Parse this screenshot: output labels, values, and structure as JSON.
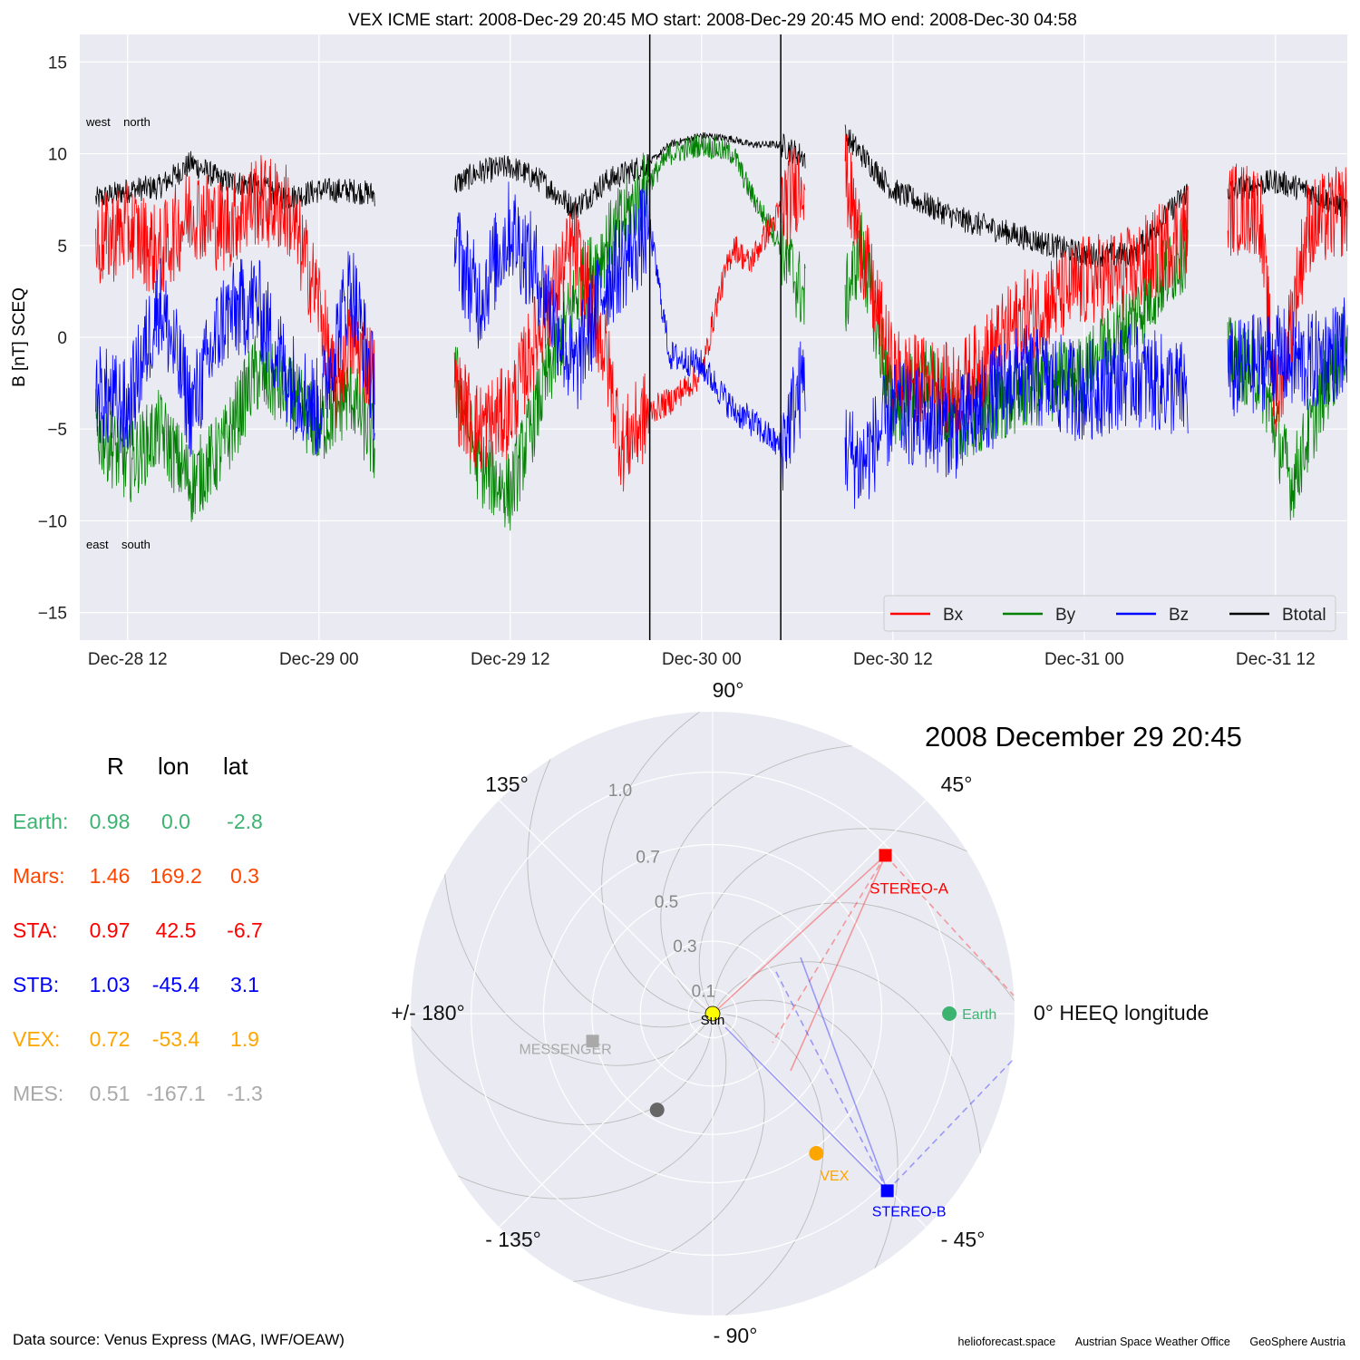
{
  "chart_data": [
    {
      "type": "line",
      "title": "VEX    ICME start: 2008-Dec-29 20:45   MO start: 2008-Dec-29 20:45   MO end: 2008-Dec-30 04:58",
      "ylabel": "B [nT] SCEQ",
      "xlabel": "",
      "x_range": [
        "2008-12-28 09:00",
        "2008-12-31 16:30"
      ],
      "ylim": [
        -16.5,
        16.5
      ],
      "yticks": [
        -15,
        -10,
        -5,
        0,
        5,
        10,
        15
      ],
      "xticks": [
        {
          "t": "2008-12-28 12:00",
          "label": "Dec-28 12"
        },
        {
          "t": "2008-12-29 00:00",
          "label": "Dec-29 00"
        },
        {
          "t": "2008-12-29 12:00",
          "label": "Dec-29 12"
        },
        {
          "t": "2008-12-30 00:00",
          "label": "Dec-30 00"
        },
        {
          "t": "2008-12-30 12:00",
          "label": "Dec-30 12"
        },
        {
          "t": "2008-12-31 00:00",
          "label": "Dec-31 00"
        },
        {
          "t": "2008-12-31 12:00",
          "label": "Dec-31 12"
        }
      ],
      "grid": true,
      "legend_position": "lower-right",
      "annotations": {
        "top_left": "west    north",
        "bottom_left": "east    south"
      },
      "vlines": [
        "2008-12-29 20:45",
        "2008-12-30 04:58"
      ],
      "data_gaps": [
        [
          "2008-12-29 03:30",
          "2008-12-29 08:30"
        ],
        [
          "2008-12-30 06:30",
          "2008-12-30 09:00"
        ],
        [
          "2008-12-31 06:30",
          "2008-12-31 09:00"
        ]
      ],
      "series": [
        {
          "name": "Bx",
          "color": "#ff0000",
          "points": [
            [
              "2008-12-28 10:00",
              5
            ],
            [
              "2008-12-28 12:00",
              6
            ],
            [
              "2008-12-28 14:00",
              4.5
            ],
            [
              "2008-12-28 16:00",
              7
            ],
            [
              "2008-12-28 18:00",
              6
            ],
            [
              "2008-12-28 20:00",
              7.5
            ],
            [
              "2008-12-28 22:00",
              7
            ],
            [
              "2008-12-29 00:00",
              2
            ],
            [
              "2008-12-29 01:00",
              -3
            ],
            [
              "2008-12-29 02:00",
              0
            ],
            [
              "2008-12-29 03:30",
              -2
            ],
            [
              "2008-12-29 08:30",
              -3
            ],
            [
              "2008-12-29 10:00",
              -5
            ],
            [
              "2008-12-29 12:00",
              -4
            ],
            [
              "2008-12-29 14:00",
              1
            ],
            [
              "2008-12-29 16:00",
              5
            ],
            [
              "2008-12-29 18:00",
              -1
            ],
            [
              "2008-12-29 19:00",
              -6
            ],
            [
              "2008-12-29 20:45",
              -4
            ],
            [
              "2008-12-29 22:00",
              -3.5
            ],
            [
              "2008-12-30 00:00",
              -2
            ],
            [
              "2008-12-30 01:00",
              2
            ],
            [
              "2008-12-30 02:00",
              5
            ],
            [
              "2008-12-30 03:00",
              4
            ],
            [
              "2008-12-30 04:58",
              7
            ],
            [
              "2008-12-30 06:30",
              9
            ],
            [
              "2008-12-30 09:00",
              9
            ],
            [
              "2008-12-30 10:00",
              5
            ],
            [
              "2008-12-30 12:00",
              -2
            ],
            [
              "2008-12-30 16:00",
              -3
            ],
            [
              "2008-12-30 20:00",
              1
            ],
            [
              "2008-12-31 00:00",
              3
            ],
            [
              "2008-12-31 03:00",
              3.5
            ],
            [
              "2008-12-31 06:30",
              6
            ],
            [
              "2008-12-31 09:00",
              7
            ],
            [
              "2008-12-31 11:00",
              7
            ],
            [
              "2008-12-31 12:00",
              -4
            ],
            [
              "2008-12-31 14:00",
              6
            ],
            [
              "2008-12-31 16:30",
              7
            ]
          ]
        },
        {
          "name": "By",
          "color": "#008000",
          "points": [
            [
              "2008-12-28 10:00",
              -5
            ],
            [
              "2008-12-28 12:00",
              -7
            ],
            [
              "2008-12-28 14:00",
              -5
            ],
            [
              "2008-12-28 16:00",
              -8
            ],
            [
              "2008-12-28 18:00",
              -6
            ],
            [
              "2008-12-28 20:00",
              -2
            ],
            [
              "2008-12-28 22:00",
              -3
            ],
            [
              "2008-12-29 00:00",
              -5
            ],
            [
              "2008-12-29 02:00",
              -3
            ],
            [
              "2008-12-29 03:30",
              -6
            ],
            [
              "2008-12-29 08:30",
              -2
            ],
            [
              "2008-12-29 10:00",
              -7
            ],
            [
              "2008-12-29 12:00",
              -8.5
            ],
            [
              "2008-12-29 14:00",
              -3
            ],
            [
              "2008-12-29 16:00",
              2
            ],
            [
              "2008-12-29 18:00",
              5
            ],
            [
              "2008-12-29 20:45",
              8.5
            ],
            [
              "2008-12-29 22:00",
              10
            ],
            [
              "2008-12-30 00:00",
              10.5
            ],
            [
              "2008-12-30 02:00",
              10
            ],
            [
              "2008-12-30 03:00",
              8
            ],
            [
              "2008-12-30 04:58",
              5
            ],
            [
              "2008-12-30 06:30",
              2
            ],
            [
              "2008-12-30 09:00",
              2
            ],
            [
              "2008-12-30 10:00",
              5
            ],
            [
              "2008-12-30 12:00",
              -4
            ],
            [
              "2008-12-30 14:00",
              -2
            ],
            [
              "2008-12-30 16:00",
              -5
            ],
            [
              "2008-12-30 20:00",
              -3
            ],
            [
              "2008-12-31 00:00",
              -2
            ],
            [
              "2008-12-31 03:00",
              1
            ],
            [
              "2008-12-31 06:30",
              5
            ],
            [
              "2008-12-31 09:00",
              -1
            ],
            [
              "2008-12-31 11:00",
              -2
            ],
            [
              "2008-12-31 13:00",
              -8
            ],
            [
              "2008-12-31 15:00",
              -3
            ],
            [
              "2008-12-31 16:30",
              0
            ]
          ]
        },
        {
          "name": "Bz",
          "color": "#0000ff",
          "points": [
            [
              "2008-12-28 10:00",
              -3
            ],
            [
              "2008-12-28 12:00",
              -4
            ],
            [
              "2008-12-28 14:00",
              2
            ],
            [
              "2008-12-28 16:00",
              -4
            ],
            [
              "2008-12-28 18:00",
              1
            ],
            [
              "2008-12-28 20:00",
              2
            ],
            [
              "2008-12-28 22:00",
              -2
            ],
            [
              "2008-12-29 00:00",
              -4
            ],
            [
              "2008-12-29 02:00",
              3
            ],
            [
              "2008-12-29 03:30",
              -3
            ],
            [
              "2008-12-29 08:30",
              5
            ],
            [
              "2008-12-29 10:00",
              2
            ],
            [
              "2008-12-29 12:00",
              6
            ],
            [
              "2008-12-29 14:00",
              3
            ],
            [
              "2008-12-29 16:00",
              -2
            ],
            [
              "2008-12-29 18:00",
              3
            ],
            [
              "2008-12-29 20:45",
              6
            ],
            [
              "2008-12-29 22:00",
              -1
            ],
            [
              "2008-12-30 00:00",
              -1.5
            ],
            [
              "2008-12-30 02:00",
              -4
            ],
            [
              "2008-12-30 03:00",
              -4.5
            ],
            [
              "2008-12-30 04:58",
              -6
            ],
            [
              "2008-12-30 06:30",
              -2
            ],
            [
              "2008-12-30 09:00",
              -6
            ],
            [
              "2008-12-30 10:00",
              -7
            ],
            [
              "2008-12-30 12:00",
              -4
            ],
            [
              "2008-12-30 16:00",
              -5
            ],
            [
              "2008-12-30 20:00",
              -2
            ],
            [
              "2008-12-31 00:00",
              -3
            ],
            [
              "2008-12-31 03:00",
              -2
            ],
            [
              "2008-12-31 06:30",
              -3
            ],
            [
              "2008-12-31 09:00",
              -2
            ],
            [
              "2008-12-31 12:00",
              -1
            ],
            [
              "2008-12-31 14:00",
              -1.5
            ],
            [
              "2008-12-31 16:30",
              -0.5
            ]
          ]
        },
        {
          "name": "Btotal",
          "color": "#000000",
          "points": [
            [
              "2008-12-28 10:00",
              7.5
            ],
            [
              "2008-12-28 12:00",
              8
            ],
            [
              "2008-12-28 14:00",
              8.2
            ],
            [
              "2008-12-28 16:00",
              9.5
            ],
            [
              "2008-12-28 18:00",
              8.5
            ],
            [
              "2008-12-28 20:00",
              8.3
            ],
            [
              "2008-12-28 22:00",
              7.6
            ],
            [
              "2008-12-29 00:00",
              8
            ],
            [
              "2008-12-29 02:00",
              8
            ],
            [
              "2008-12-29 03:30",
              7.8
            ],
            [
              "2008-12-29 08:30",
              8.3
            ],
            [
              "2008-12-29 10:00",
              9
            ],
            [
              "2008-12-29 12:00",
              9.3
            ],
            [
              "2008-12-29 14:00",
              8.5
            ],
            [
              "2008-12-29 16:00",
              7
            ],
            [
              "2008-12-29 18:00",
              8.5
            ],
            [
              "2008-12-29 20:45",
              9.5
            ],
            [
              "2008-12-29 22:00",
              10.5
            ],
            [
              "2008-12-30 00:00",
              11
            ],
            [
              "2008-12-30 02:00",
              10.8
            ],
            [
              "2008-12-30 03:00",
              10.5
            ],
            [
              "2008-12-30 04:58",
              10.5
            ],
            [
              "2008-12-30 06:30",
              9.8
            ],
            [
              "2008-12-30 09:00",
              11
            ],
            [
              "2008-12-30 10:00",
              10
            ],
            [
              "2008-12-30 12:00",
              8
            ],
            [
              "2008-12-30 16:00",
              6.5
            ],
            [
              "2008-12-30 20:00",
              5.5
            ],
            [
              "2008-12-31 00:00",
              4.5
            ],
            [
              "2008-12-31 03:00",
              4.5
            ],
            [
              "2008-12-31 06:30",
              8
            ],
            [
              "2008-12-31 09:00",
              8
            ],
            [
              "2008-12-31 12:00",
              8.5
            ],
            [
              "2008-12-31 14:00",
              8
            ],
            [
              "2008-12-31 16:30",
              7
            ]
          ]
        }
      ]
    },
    {
      "type": "scatter",
      "projection": "polar",
      "title": "2008 December 29  20:45",
      "angular_axis": "HEEQ longitude (deg)",
      "theta_labels": [
        {
          "deg": 90,
          "label": "90°"
        },
        {
          "deg": 45,
          "label": "45°"
        },
        {
          "deg": 0,
          "label": "0° HEEQ longitude"
        },
        {
          "deg": -45,
          "label": "- 45°"
        },
        {
          "deg": -90,
          "label": "- 90°"
        },
        {
          "deg": -135,
          "label": "- 135°"
        },
        {
          "deg": 180,
          "label": "+/- 180°"
        },
        {
          "deg": 135,
          "label": "135°"
        }
      ],
      "r_labels": [
        "0.1",
        "0.3",
        "0.5",
        "0.7",
        "1.0"
      ],
      "r_ticks": [
        0.1,
        0.3,
        0.5,
        0.7,
        1.0
      ],
      "r_max": 1.25,
      "grid": true,
      "bodies": [
        {
          "name": "Sun",
          "label": "Sun",
          "r": 0,
          "lon": 0,
          "color": "#ffff00",
          "marker": "circle"
        },
        {
          "name": "Earth",
          "label": "Earth",
          "r": 0.98,
          "lon": 0.0,
          "color": "#3cb371",
          "marker": "circle"
        },
        {
          "name": "STEREO-A",
          "label": "STEREO-A",
          "r": 0.97,
          "lon": 42.5,
          "color": "#ff0000",
          "marker": "square"
        },
        {
          "name": "STEREO-B",
          "label": "STEREO-B",
          "r": 1.03,
          "lon": -45.4,
          "color": "#0000ff",
          "marker": "square"
        },
        {
          "name": "VEX",
          "label": "VEX",
          "r": 0.72,
          "lon": -53.4,
          "color": "#ffa500",
          "marker": "circle"
        },
        {
          "name": "MESSENGER",
          "label": "MESSENGER",
          "r": 0.51,
          "lon": -167.1,
          "color": "#a9a9a9",
          "marker": "square"
        },
        {
          "name": "unlabeled",
          "label": "",
          "r": 0.46,
          "lon": -120,
          "color": "#666666",
          "marker": "circle"
        }
      ]
    }
  ],
  "table": {
    "headers": [
      "R",
      "lon",
      "lat"
    ],
    "rows": [
      {
        "name": "Earth:",
        "R": "0.98",
        "lon": "0.0",
        "lat": "-2.8",
        "color": "#3cb371"
      },
      {
        "name": "Mars:",
        "R": "1.46",
        "lon": "169.2",
        "lat": "0.3",
        "color": "#ff4500"
      },
      {
        "name": "STA:",
        "R": "0.97",
        "lon": "42.5",
        "lat": "-6.7",
        "color": "#ff0000"
      },
      {
        "name": "STB:",
        "R": "1.03",
        "lon": "-45.4",
        "lat": "3.1",
        "color": "#0000ff"
      },
      {
        "name": "VEX:",
        "R": "0.72",
        "lon": "-53.4",
        "lat": "1.9",
        "color": "#ffa500"
      },
      {
        "name": "MES:",
        "R": "0.51",
        "lon": "-167.1",
        "lat": "-1.3",
        "color": "#a9a9a9"
      }
    ]
  },
  "footer": {
    "source": "Data source: Venus Express (MAG, IWF/OEAW)",
    "credits": [
      "helioforecast.space",
      "Austrian Space Weather Office",
      "GeoSphere Austria"
    ]
  }
}
